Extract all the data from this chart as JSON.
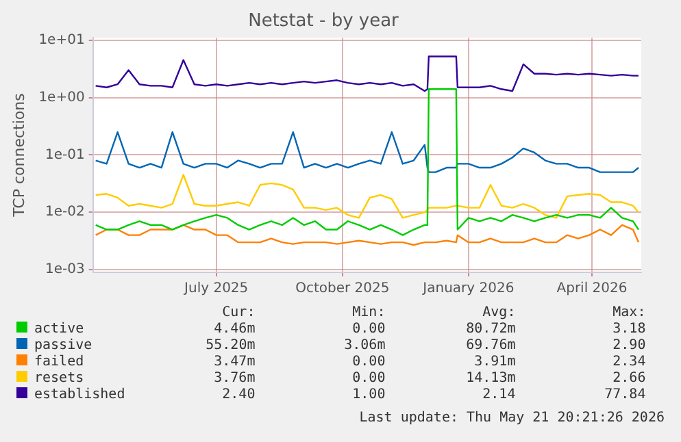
{
  "chart_data": {
    "type": "line",
    "title": "Netstat - by year",
    "ylabel": "TCP connections",
    "log": "y",
    "grid": true,
    "legend": "bottom",
    "marker": "none",
    "line_style": "solid",
    "xlim": [
      "2025-04-16",
      "2026-05-21"
    ],
    "xticks": [
      {
        "value": "2025-07-15",
        "label": "July 2025"
      },
      {
        "value": "2025-10-15",
        "label": "October 2025"
      },
      {
        "value": "2026-01-15",
        "label": "January 2026"
      },
      {
        "value": "2026-04-15",
        "label": "April 2026"
      }
    ],
    "ylim": [
      0.0009,
      11
    ],
    "yticks": [
      {
        "value": 0.001,
        "label": "1e-03"
      },
      {
        "value": 0.01,
        "label": "1e-02"
      },
      {
        "value": 0.1,
        "label": "1e-01"
      },
      {
        "value": 1,
        "label": "1e+00"
      },
      {
        "value": 10,
        "label": "1e+01"
      }
    ],
    "x": [
      "2025-04-18",
      "2025-04-26",
      "2025-05-04",
      "2025-05-12",
      "2025-05-20",
      "2025-05-28",
      "2025-06-05",
      "2025-06-13",
      "2025-06-21",
      "2025-06-29",
      "2025-07-07",
      "2025-07-15",
      "2025-07-23",
      "2025-07-31",
      "2025-08-08",
      "2025-08-16",
      "2025-08-24",
      "2025-09-01",
      "2025-09-09",
      "2025-09-17",
      "2025-09-25",
      "2025-10-03",
      "2025-10-11",
      "2025-10-19",
      "2025-10-27",
      "2025-11-04",
      "2025-11-12",
      "2025-11-20",
      "2025-11-28",
      "2025-12-06",
      "2025-12-14",
      "2025-12-16",
      "2025-12-17",
      "2025-12-22",
      "2025-12-30",
      "2026-01-06",
      "2026-01-07",
      "2026-01-15",
      "2026-01-23",
      "2026-01-31",
      "2026-02-08",
      "2026-02-16",
      "2026-02-24",
      "2026-03-04",
      "2026-03-12",
      "2026-03-20",
      "2026-03-28",
      "2026-04-05",
      "2026-04-13",
      "2026-04-21",
      "2026-04-29",
      "2026-05-07",
      "2026-05-15",
      "2026-05-19"
    ],
    "series": [
      {
        "name": "active",
        "color": "#00cc00",
        "values": [
          0.006,
          0.005,
          0.005,
          0.006,
          0.007,
          0.006,
          0.006,
          0.005,
          0.006,
          0.007,
          0.008,
          0.009,
          0.008,
          0.006,
          0.005,
          0.006,
          0.007,
          0.006,
          0.008,
          0.006,
          0.007,
          0.005,
          0.005,
          0.007,
          0.006,
          0.005,
          0.006,
          0.005,
          0.004,
          0.005,
          0.006,
          0.006,
          1.4,
          1.4,
          1.4,
          1.4,
          0.005,
          0.008,
          0.007,
          0.008,
          0.007,
          0.009,
          0.008,
          0.007,
          0.008,
          0.009,
          0.008,
          0.009,
          0.009,
          0.008,
          0.012,
          0.008,
          0.007,
          0.005
        ]
      },
      {
        "name": "passive",
        "color": "#0066b3",
        "values": [
          0.08,
          0.07,
          0.25,
          0.07,
          0.06,
          0.07,
          0.06,
          0.25,
          0.07,
          0.06,
          0.07,
          0.07,
          0.06,
          0.08,
          0.07,
          0.06,
          0.07,
          0.07,
          0.25,
          0.06,
          0.07,
          0.06,
          0.07,
          0.06,
          0.07,
          0.08,
          0.07,
          0.25,
          0.07,
          0.08,
          0.15,
          0.06,
          0.05,
          0.05,
          0.06,
          0.06,
          0.07,
          0.07,
          0.06,
          0.06,
          0.07,
          0.09,
          0.13,
          0.11,
          0.08,
          0.07,
          0.07,
          0.06,
          0.06,
          0.05,
          0.05,
          0.05,
          0.05,
          0.06
        ]
      },
      {
        "name": "failed",
        "color": "#ff8000",
        "values": [
          0.004,
          0.005,
          0.005,
          0.004,
          0.004,
          0.005,
          0.005,
          0.005,
          0.006,
          0.005,
          0.005,
          0.004,
          0.004,
          0.003,
          0.003,
          0.003,
          0.0035,
          0.003,
          0.0028,
          0.003,
          0.003,
          0.003,
          0.0028,
          0.003,
          0.0032,
          0.003,
          0.0028,
          0.003,
          0.003,
          0.0027,
          0.003,
          0.003,
          0.003,
          0.003,
          0.0032,
          0.003,
          0.004,
          0.003,
          0.003,
          0.0035,
          0.003,
          0.003,
          0.003,
          0.0035,
          0.003,
          0.003,
          0.004,
          0.0035,
          0.004,
          0.005,
          0.004,
          0.006,
          0.005,
          0.003
        ]
      },
      {
        "name": "resets",
        "color": "#ffcc00",
        "values": [
          0.02,
          0.021,
          0.018,
          0.013,
          0.014,
          0.013,
          0.012,
          0.014,
          0.045,
          0.014,
          0.013,
          0.013,
          0.014,
          0.015,
          0.013,
          0.03,
          0.032,
          0.03,
          0.025,
          0.012,
          0.012,
          0.011,
          0.012,
          0.009,
          0.008,
          0.018,
          0.02,
          0.017,
          0.008,
          0.009,
          0.01,
          0.011,
          0.012,
          0.012,
          0.012,
          0.013,
          0.013,
          0.012,
          0.012,
          0.03,
          0.013,
          0.012,
          0.014,
          0.012,
          0.009,
          0.008,
          0.019,
          0.02,
          0.021,
          0.02,
          0.015,
          0.015,
          0.013,
          0.01
        ]
      },
      {
        "name": "established",
        "color": "#330099",
        "values": [
          1.6,
          1.5,
          1.7,
          3.0,
          1.7,
          1.6,
          1.6,
          1.5,
          4.5,
          1.7,
          1.6,
          1.7,
          1.6,
          1.7,
          1.8,
          1.7,
          1.8,
          1.7,
          1.8,
          1.9,
          1.8,
          1.9,
          2.0,
          1.8,
          1.7,
          1.8,
          1.7,
          1.8,
          1.6,
          1.7,
          1.3,
          1.4,
          5.2,
          5.2,
          5.2,
          5.2,
          1.5,
          1.5,
          1.5,
          1.6,
          1.4,
          1.3,
          3.8,
          2.6,
          2.6,
          2.5,
          2.6,
          2.5,
          2.6,
          2.5,
          2.4,
          2.5,
          2.4,
          2.4
        ]
      }
    ],
    "annotations": [
      "Cur: Min: Avg: Max:",
      "4.46m 0.00 80.72m 3.18",
      "55.20m 3.06m 69.76m 2.90",
      "3.47m 0.00 3.91m 2.34",
      "3.76m 0.00 14.13m 2.66",
      "2.40 1.00 2.14 77.84",
      "Last update: Thu May 21 20:21:26 2026"
    ]
  }
}
